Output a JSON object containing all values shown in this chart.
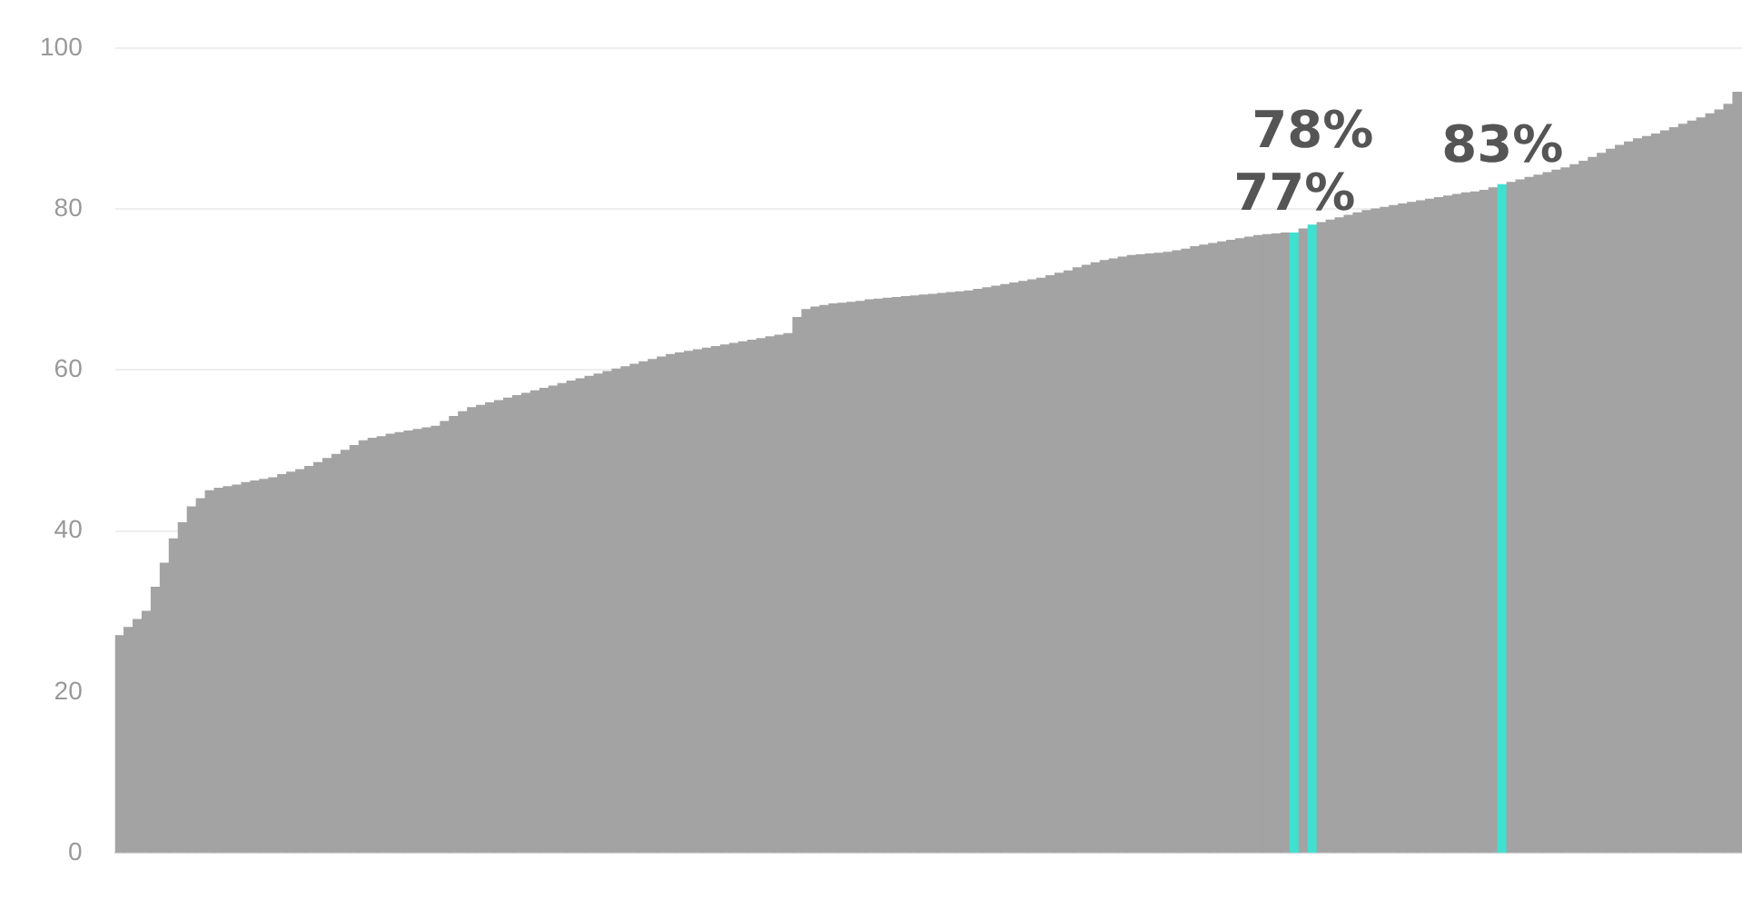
{
  "chart_data": {
    "type": "bar",
    "categories": [
      null,
      null,
      null,
      null,
      null,
      null,
      null,
      null,
      null,
      null,
      null,
      null,
      null,
      null,
      null,
      null,
      null,
      null,
      null,
      null,
      null,
      null,
      null,
      null,
      null,
      null,
      null,
      null,
      null,
      null,
      null,
      null,
      null,
      null,
      null,
      null,
      null,
      null,
      null,
      null,
      null,
      null,
      null,
      null,
      null,
      null,
      null,
      null,
      null,
      null,
      null,
      null,
      null,
      null,
      null,
      null,
      null,
      null,
      null,
      null,
      null,
      null,
      null,
      null,
      null,
      null,
      null,
      null,
      null,
      null,
      null,
      null,
      null,
      null,
      null,
      null,
      null,
      null,
      null,
      null,
      null,
      null,
      null,
      null,
      null,
      null,
      null,
      null,
      null,
      null,
      null,
      null,
      null,
      null,
      null,
      null,
      null,
      null,
      null,
      null,
      null,
      null,
      null,
      null,
      null,
      null,
      null,
      null,
      null,
      null,
      null,
      null,
      null,
      null,
      null,
      null,
      null,
      null,
      null,
      null,
      null,
      null,
      null,
      null,
      null,
      null,
      null,
      null,
      null,
      null,
      null,
      null,
      null,
      null,
      null,
      null,
      null,
      null,
      null,
      null,
      null,
      null,
      null,
      null,
      null,
      null,
      null,
      null,
      null,
      null,
      null,
      null,
      null,
      null,
      null,
      null,
      null,
      null,
      null,
      null,
      null,
      null,
      null,
      null,
      null,
      null,
      null,
      null,
      null,
      null,
      null,
      null,
      null,
      null,
      null,
      null,
      null,
      null,
      null,
      null
    ],
    "values": [
      27,
      28,
      29,
      30,
      33,
      36,
      39,
      41,
      43,
      44,
      45,
      45.3,
      45.5,
      45.7,
      46,
      46.2,
      46.4,
      46.6,
      47,
      47.3,
      47.6,
      48,
      48.5,
      49,
      49.5,
      50,
      50.6,
      51.2,
      51.5,
      51.7,
      52,
      52.2,
      52.4,
      52.6,
      52.8,
      53,
      53.6,
      54.2,
      54.8,
      55.3,
      55.6,
      55.9,
      56.2,
      56.5,
      56.8,
      57.1,
      57.4,
      57.7,
      58,
      58.3,
      58.6,
      58.9,
      59.2,
      59.5,
      59.8,
      60.1,
      60.4,
      60.7,
      61,
      61.3,
      61.6,
      61.9,
      62.1,
      62.3,
      62.5,
      62.7,
      62.9,
      63.1,
      63.3,
      63.5,
      63.7,
      63.9,
      64.1,
      64.3,
      64.5,
      66.5,
      67.5,
      67.8,
      68,
      68.2,
      68.3,
      68.4,
      68.5,
      68.7,
      68.8,
      68.9,
      69,
      69.1,
      69.2,
      69.3,
      69.4,
      69.5,
      69.6,
      69.7,
      69.8,
      70,
      70.2,
      70.4,
      70.6,
      70.8,
      71,
      71.2,
      71.4,
      71.7,
      72,
      72.3,
      72.7,
      73,
      73.3,
      73.6,
      73.8,
      74,
      74.2,
      74.3,
      74.4,
      74.5,
      74.6,
      74.8,
      75,
      75.3,
      75.5,
      75.7,
      75.9,
      76.1,
      76.3,
      76.5,
      76.7,
      76.8,
      76.9,
      77,
      77,
      77.5,
      78,
      78.3,
      78.6,
      78.9,
      79.2,
      79.5,
      79.8,
      80,
      80.2,
      80.4,
      80.6,
      80.8,
      81,
      81.2,
      81.4,
      81.6,
      81.8,
      82,
      82.1,
      82.3,
      82.6,
      83,
      83.3,
      83.6,
      83.9,
      84.2,
      84.5,
      84.8,
      85.1,
      85.5,
      85.9,
      86.4,
      86.9,
      87.4,
      87.9,
      88.3,
      88.7,
      89,
      89.3,
      89.7,
      90.1,
      90.5,
      90.9,
      91.3,
      91.8,
      92.3,
      93,
      94.5
    ],
    "colors": [
      "#a3a3a3",
      "#a3a3a3",
      "#a3a3a3",
      "#a3a3a3",
      "#a3a3a3",
      "#a3a3a3",
      "#a3a3a3",
      "#a3a3a3",
      "#a3a3a3",
      "#a3a3a3",
      "#a3a3a3",
      "#a3a3a3",
      "#a3a3a3",
      "#a3a3a3",
      "#a3a3a3",
      "#a3a3a3",
      "#a3a3a3",
      "#a3a3a3",
      "#a3a3a3",
      "#a3a3a3",
      "#a3a3a3",
      "#a3a3a3",
      "#a3a3a3",
      "#a3a3a3",
      "#a3a3a3",
      "#a3a3a3",
      "#a3a3a3",
      "#a3a3a3",
      "#a3a3a3",
      "#a3a3a3",
      "#a3a3a3",
      "#a3a3a3",
      "#a3a3a3",
      "#a3a3a3",
      "#a3a3a3",
      "#a3a3a3",
      "#a3a3a3",
      "#a3a3a3",
      "#a3a3a3",
      "#a3a3a3",
      "#a3a3a3",
      "#a3a3a3",
      "#a3a3a3",
      "#a3a3a3",
      "#a3a3a3",
      "#a3a3a3",
      "#a3a3a3",
      "#a3a3a3",
      "#a3a3a3",
      "#a3a3a3",
      "#a3a3a3",
      "#a3a3a3",
      "#a3a3a3",
      "#a3a3a3",
      "#a3a3a3",
      "#a3a3a3",
      "#a3a3a3",
      "#a3a3a3",
      "#a3a3a3",
      "#a3a3a3",
      "#a3a3a3",
      "#a3a3a3",
      "#a3a3a3",
      "#a3a3a3",
      "#a3a3a3",
      "#a3a3a3",
      "#a3a3a3",
      "#a3a3a3",
      "#a3a3a3",
      "#a3a3a3",
      "#a3a3a3",
      "#a3a3a3",
      "#a3a3a3",
      "#a3a3a3",
      "#a3a3a3",
      "#a3a3a3",
      "#a3a3a3",
      "#a3a3a3",
      "#a3a3a3",
      "#a3a3a3",
      "#a3a3a3",
      "#a3a3a3",
      "#a3a3a3",
      "#a3a3a3",
      "#a3a3a3",
      "#a3a3a3",
      "#a3a3a3",
      "#a3a3a3",
      "#a3a3a3",
      "#a3a3a3",
      "#a3a3a3",
      "#a3a3a3",
      "#a3a3a3",
      "#a3a3a3",
      "#a3a3a3",
      "#a3a3a3",
      "#a3a3a3",
      "#a3a3a3",
      "#a3a3a3",
      "#a3a3a3",
      "#a3a3a3",
      "#a3a3a3",
      "#a3a3a3",
      "#a3a3a3",
      "#a3a3a3",
      "#a3a3a3",
      "#a3a3a3",
      "#a3a3a3",
      "#a3a3a3",
      "#a3a3a3",
      "#a3a3a3",
      "#a3a3a3",
      "#a3a3a3",
      "#a3a3a3",
      "#a3a3a3",
      "#a3a3a3",
      "#a3a3a3",
      "#a3a3a3",
      "#a3a3a3",
      "#a3a3a3",
      "#a3a3a3",
      "#a3a3a3",
      "#a3a3a3",
      "#a3a3a3",
      "#a3a3a3",
      "#a3a3a3",
      "#a3a3a3",
      "#a3a3a3",
      "#a3a3a3",
      "#a3a3a3",
      "#40e0d0",
      "#a3a3a3",
      "#40e0d0",
      "#a3a3a3",
      "#a3a3a3",
      "#a3a3a3",
      "#a3a3a3",
      "#a3a3a3",
      "#a3a3a3",
      "#a3a3a3",
      "#a3a3a3",
      "#a3a3a3",
      "#a3a3a3",
      "#a3a3a3",
      "#a3a3a3",
      "#a3a3a3",
      "#a3a3a3",
      "#a3a3a3",
      "#a3a3a3",
      "#a3a3a3",
      "#a3a3a3",
      "#a3a3a3",
      "#a3a3a3",
      "#40e0d0",
      "#a3a3a3",
      "#a3a3a3",
      "#a3a3a3",
      "#a3a3a3",
      "#a3a3a3",
      "#a3a3a3",
      "#a3a3a3",
      "#a3a3a3",
      "#a3a3a3",
      "#a3a3a3",
      "#a3a3a3",
      "#a3a3a3",
      "#a3a3a3",
      "#a3a3a3",
      "#a3a3a3",
      "#a3a3a3",
      "#a3a3a3",
      "#a3a3a3",
      "#a3a3a3",
      "#a3a3a3",
      "#a3a3a3",
      "#a3a3a3",
      "#a3a3a3",
      "#a3a3a3",
      "#a3a3a3",
      "#a3a3a3"
    ],
    "value_labels": [
      null,
      null,
      null,
      null,
      null,
      null,
      null,
      null,
      null,
      null,
      null,
      null,
      null,
      null,
      null,
      null,
      null,
      null,
      null,
      null,
      null,
      null,
      null,
      null,
      null,
      null,
      null,
      null,
      null,
      null,
      null,
      null,
      null,
      null,
      null,
      null,
      null,
      null,
      null,
      null,
      null,
      null,
      null,
      null,
      null,
      null,
      null,
      null,
      null,
      null,
      null,
      null,
      null,
      null,
      null,
      null,
      null,
      null,
      null,
      null,
      null,
      null,
      null,
      null,
      null,
      null,
      null,
      null,
      null,
      null,
      null,
      null,
      null,
      null,
      null,
      null,
      null,
      null,
      null,
      null,
      null,
      null,
      null,
      null,
      null,
      null,
      null,
      null,
      null,
      null,
      null,
      null,
      null,
      null,
      null,
      null,
      null,
      null,
      null,
      null,
      null,
      null,
      null,
      null,
      null,
      null,
      null,
      null,
      null,
      null,
      null,
      null,
      null,
      null,
      null,
      null,
      null,
      null,
      null,
      null,
      null,
      null,
      null,
      null,
      null,
      null,
      null,
      null,
      null,
      null,
      "77%",
      null,
      "78%",
      null,
      null,
      null,
      null,
      null,
      null,
      null,
      null,
      null,
      null,
      null,
      null,
      null,
      null,
      null,
      null,
      null,
      null,
      null,
      null,
      "83%",
      null,
      null,
      null,
      null,
      null,
      null,
      null,
      null,
      null,
      null,
      null,
      null,
      null,
      null,
      null,
      null,
      null,
      null,
      null,
      null,
      null,
      null,
      null,
      null,
      null,
      null
    ],
    "ylim": [
      0,
      100
    ],
    "yticks": [
      0,
      20,
      40,
      60,
      80,
      100
    ],
    "grid": "y",
    "tick_labels": "y"
  }
}
